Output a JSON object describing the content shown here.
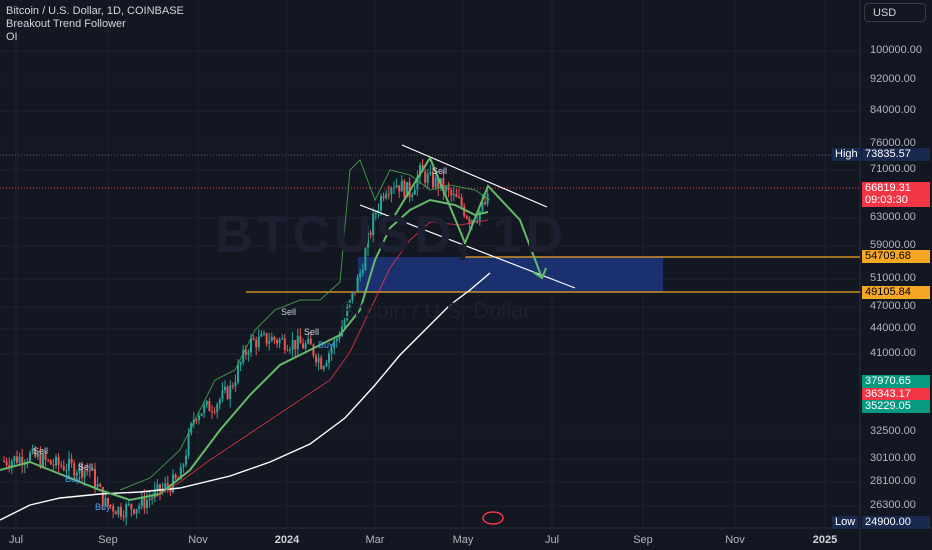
{
  "legend": {
    "symbol": "Bitcoin / U.S. Dollar, 1D, COINBASE",
    "indicator1": "Breakout Trend Follower",
    "indicator2": "OI"
  },
  "currency": "USD",
  "watermark": {
    "ticker": "BTCUSD, 1D",
    "name": "Bitcoin / U.S. Dollar"
  },
  "y_ticks": [
    "100000.00",
    "92000.00",
    "84000.00",
    "76000.00",
    "71000.00",
    "63000.00",
    "59000.00",
    "51000.00",
    "47000.00",
    "44000.00",
    "41000.00",
    "32500.00",
    "30100.00",
    "28100.00",
    "26300.00"
  ],
  "x_ticks": [
    {
      "label": "Jul",
      "bold": false
    },
    {
      "label": "Sep",
      "bold": false
    },
    {
      "label": "Nov",
      "bold": false
    },
    {
      "label": "2024",
      "bold": true
    },
    {
      "label": "Mar",
      "bold": false
    },
    {
      "label": "May",
      "bold": false
    },
    {
      "label": "Jul",
      "bold": false
    },
    {
      "label": "Sep",
      "bold": false
    },
    {
      "label": "Nov",
      "bold": false
    },
    {
      "label": "2025",
      "bold": true
    }
  ],
  "price_tags": {
    "high_label": "High",
    "high_value": "73835.57",
    "current_value": "66819.31",
    "countdown": "09:03:30",
    "level1": "54709.68",
    "level2": "49105.84",
    "ma1": "37970.65",
    "ma2": "36343.17",
    "ma3": "35229.05",
    "low_label": "Low",
    "low_value": "24900.00"
  },
  "signals": {
    "sell": "Sell",
    "buy": "Buy"
  },
  "colors": {
    "bg": "#131722",
    "up": "#26a69a",
    "down": "#ef5350",
    "green_line": "#66bb6a",
    "white_line": "#ffffff",
    "orange": "#f5a623",
    "blue_zone": "#1e3a8a",
    "high_tag": "#1a2a4f",
    "current_tag": "#f23645",
    "ma_green": "#089981",
    "ma_red": "#f23645"
  },
  "chart_data": {
    "type": "candlestick",
    "title": "Bitcoin / U.S. Dollar, 1D, COINBASE",
    "ylim": [
      24000,
      104000
    ],
    "y_scale": "log",
    "levels": [
      54709.68,
      49105.84
    ],
    "high": 73835.57,
    "low": 24900.0,
    "last": 66819.31,
    "x_range": [
      "Jul 2023",
      "Jan 2025"
    ],
    "grid": true
  }
}
